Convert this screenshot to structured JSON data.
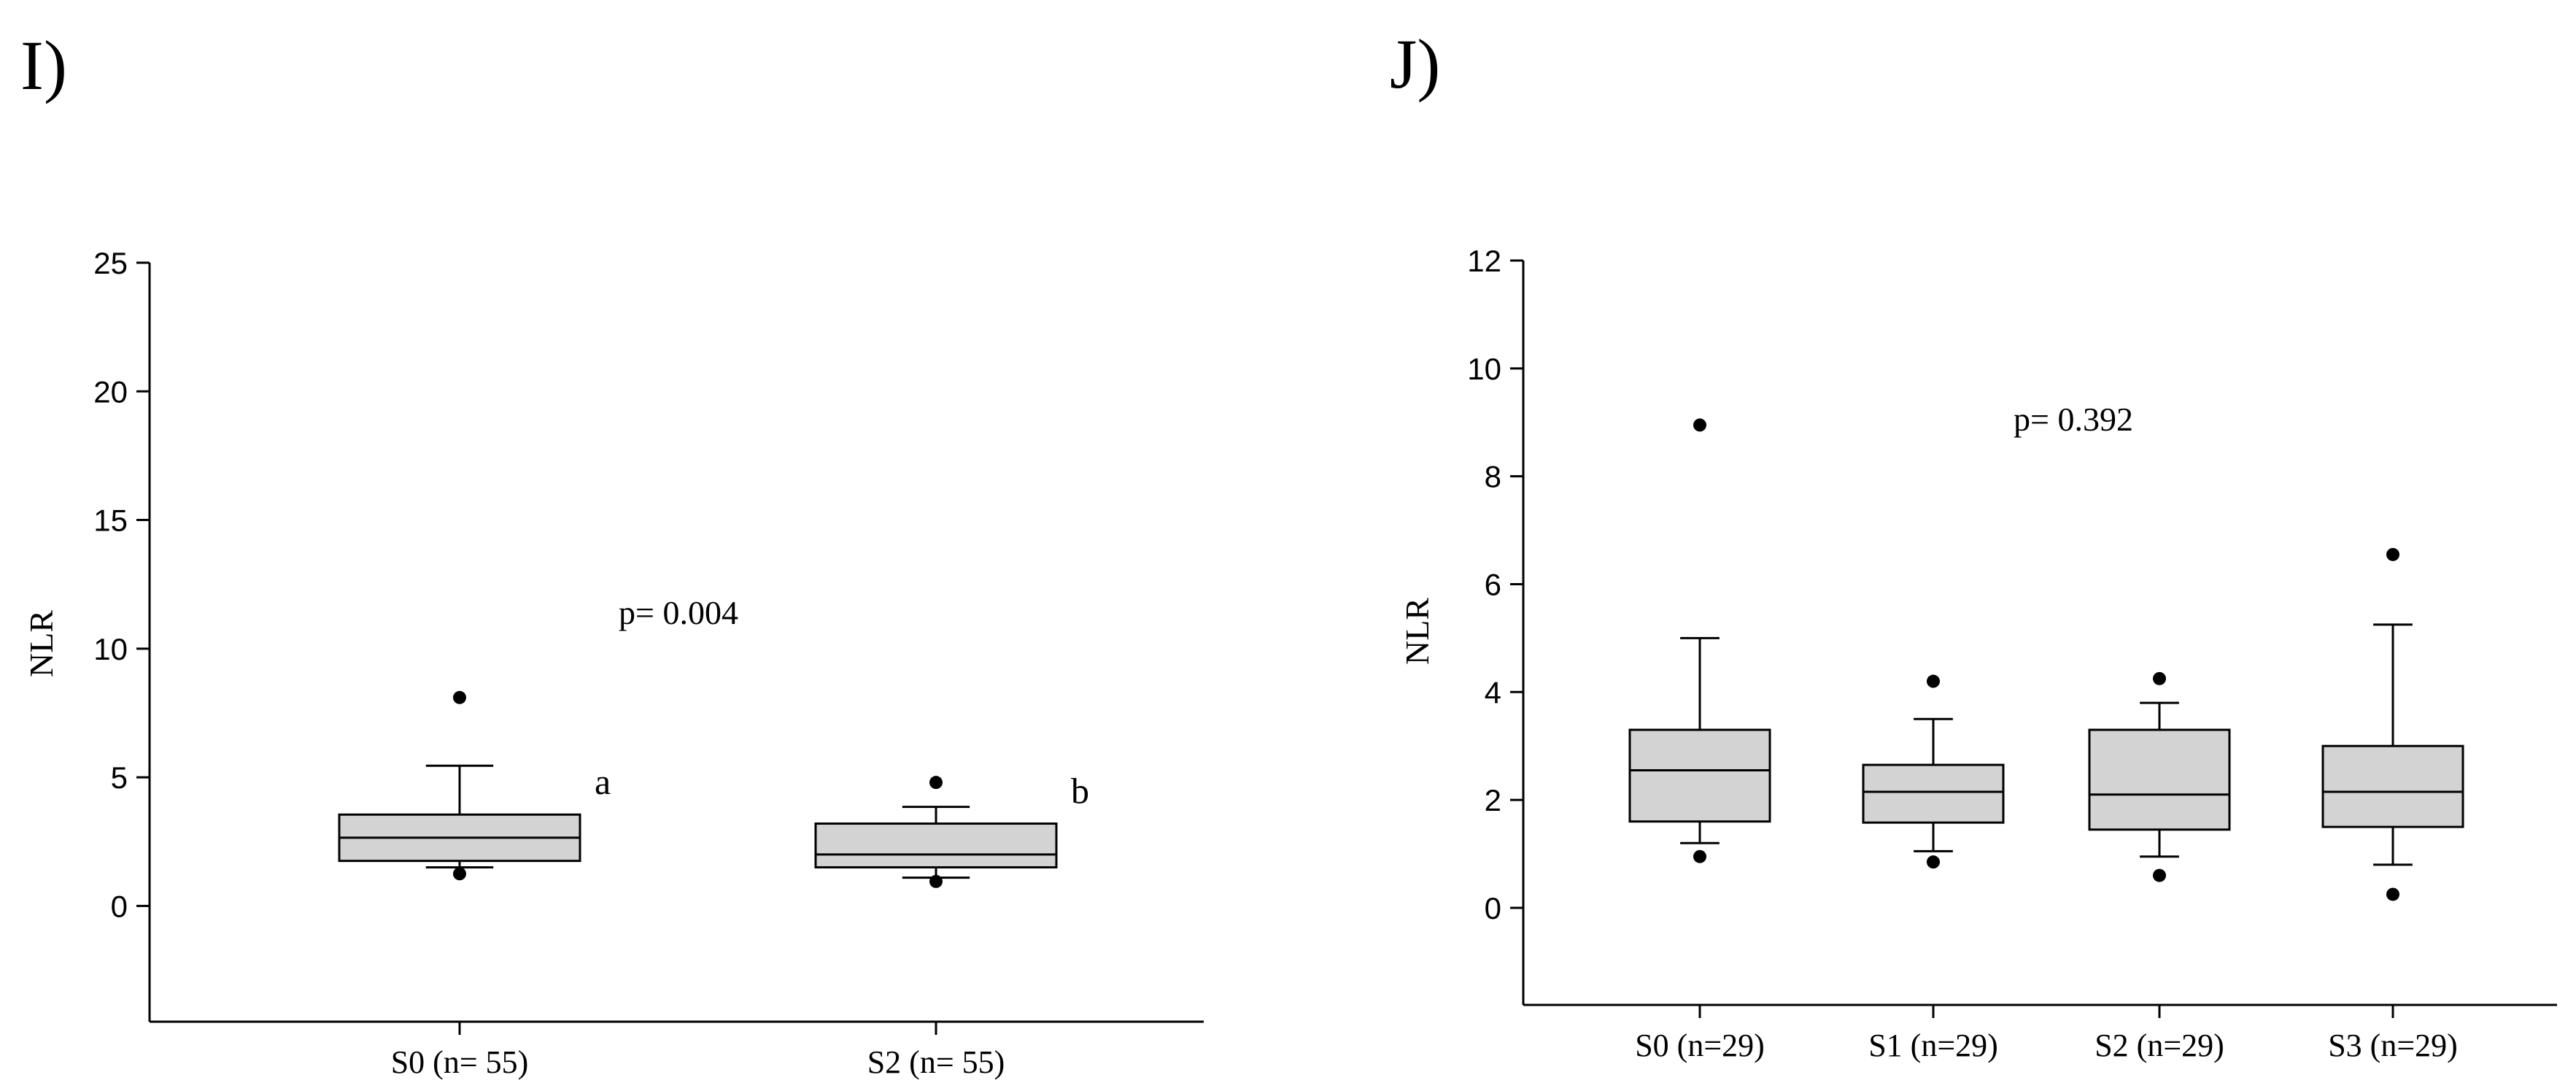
{
  "chart_data": [
    {
      "type": "box",
      "panel_label": "I)",
      "ylabel": "NLR",
      "ylim": [
        -4.5,
        25
      ],
      "yticks": [
        0,
        5,
        10,
        15,
        20,
        25
      ],
      "grid": false,
      "annotation": "p= 0.004",
      "categories": [
        "S0 (n= 55)",
        "S2 (n= 55)"
      ],
      "boxes": [
        {
          "category": "S0 (n= 55)",
          "whisker_low": 1.5,
          "q1": 1.75,
          "median": 2.65,
          "q3": 3.55,
          "whisker_high": 5.45,
          "outliers": [
            8.1,
            1.25
          ],
          "letter": "a"
        },
        {
          "category": "S2 (n= 55)",
          "whisker_low": 1.1,
          "q1": 1.5,
          "median": 2.0,
          "q3": 3.2,
          "whisker_high": 3.85,
          "outliers": [
            4.8,
            0.95
          ],
          "letter": "b"
        }
      ]
    },
    {
      "type": "box",
      "panel_label": "J)",
      "ylabel": "NLR",
      "ylim": [
        -1.8,
        12
      ],
      "yticks": [
        0,
        2,
        4,
        6,
        8,
        10,
        12
      ],
      "grid": false,
      "annotation": "p= 0.392",
      "categories": [
        "S0 (n=29)",
        "S1 (n=29)",
        "S2 (n=29)",
        "S3 (n=29)"
      ],
      "boxes": [
        {
          "category": "S0 (n=29)",
          "whisker_low": 1.2,
          "q1": 1.6,
          "median": 2.55,
          "q3": 3.3,
          "whisker_high": 5.0,
          "outliers": [
            8.95,
            0.95
          ]
        },
        {
          "category": "S1 (n=29)",
          "whisker_low": 1.05,
          "q1": 1.58,
          "median": 2.15,
          "q3": 2.65,
          "whisker_high": 3.5,
          "outliers": [
            4.2,
            0.85
          ]
        },
        {
          "category": "S2 (n=29)",
          "whisker_low": 0.95,
          "q1": 1.45,
          "median": 2.1,
          "q3": 3.3,
          "whisker_high": 3.8,
          "outliers": [
            4.25,
            0.6
          ]
        },
        {
          "category": "S3 (n=29)",
          "whisker_low": 0.8,
          "q1": 1.5,
          "median": 2.15,
          "q3": 3.0,
          "whisker_high": 5.25,
          "outliers": [
            6.55,
            0.25
          ]
        }
      ]
    }
  ],
  "colors": {
    "box_fill": "#d3d3d3",
    "stroke": "#000000",
    "background": "#ffffff"
  }
}
